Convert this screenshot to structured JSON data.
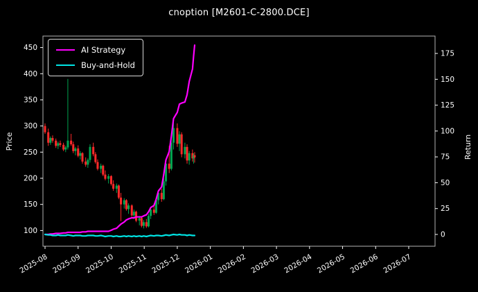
{
  "chart_data": {
    "type": "candlestick+line",
    "title": "cnoption [M2601-C-2800.DCE]",
    "ylabel_left": "Price",
    "ylabel_right": "Return",
    "legend_position": "upper left",
    "grid": false,
    "x_ticks": [
      "2025-08",
      "2025-09",
      "2025-10",
      "2025-11",
      "2025-12",
      "2026-01",
      "2026-02",
      "2026-03",
      "2026-04",
      "2026-05",
      "2026-06",
      "2026-07"
    ],
    "price_ticks": [
      100,
      150,
      200,
      250,
      300,
      350,
      400,
      450
    ],
    "return_ticks": [
      0,
      25,
      50,
      75,
      100,
      125,
      150,
      175
    ],
    "price_axis_range": [
      70,
      472
    ],
    "return_axis_range": [
      -11.4,
      191.8
    ],
    "colors": {
      "background": "#000000",
      "text": "#ffffff",
      "frame": "#b3b3b3",
      "up": "#00a651",
      "down": "#ff2a2a",
      "ai_line": "#ff00ff",
      "bh_line": "#00e5e5"
    },
    "candles": [
      [
        "2025-08-01",
        300,
        305,
        285,
        288
      ],
      [
        "2025-08-04",
        288,
        295,
        262,
        268
      ],
      [
        "2025-08-06",
        268,
        280,
        264,
        277
      ],
      [
        "2025-08-08",
        277,
        282,
        268,
        272
      ],
      [
        "2025-08-11",
        272,
        276,
        258,
        262
      ],
      [
        "2025-08-13",
        262,
        270,
        256,
        267
      ],
      [
        "2025-08-15",
        267,
        272,
        260,
        264
      ],
      [
        "2025-08-18",
        264,
        268,
        252,
        255
      ],
      [
        "2025-08-20",
        255,
        262,
        250,
        259
      ],
      [
        "2025-08-22",
        259,
        390,
        255,
        272
      ],
      [
        "2025-08-25",
        272,
        285,
        262,
        265
      ],
      [
        "2025-08-27",
        265,
        270,
        248,
        252
      ],
      [
        "2025-08-29",
        252,
        260,
        244,
        257
      ],
      [
        "2025-09-01",
        257,
        263,
        240,
        243
      ],
      [
        "2025-09-03",
        243,
        252,
        236,
        248
      ],
      [
        "2025-09-05",
        248,
        250,
        228,
        232
      ],
      [
        "2025-09-08",
        232,
        240,
        222,
        226
      ],
      [
        "2025-09-10",
        226,
        238,
        220,
        235
      ],
      [
        "2025-09-12",
        235,
        265,
        230,
        260
      ],
      [
        "2025-09-15",
        260,
        268,
        242,
        246
      ],
      [
        "2025-09-17",
        246,
        250,
        228,
        231
      ],
      [
        "2025-09-19",
        231,
        236,
        215,
        218
      ],
      [
        "2025-09-22",
        218,
        228,
        210,
        224
      ],
      [
        "2025-09-24",
        224,
        226,
        204,
        207
      ],
      [
        "2025-09-26",
        207,
        215,
        196,
        199
      ],
      [
        "2025-09-29",
        199,
        208,
        190,
        204
      ],
      [
        "2025-10-01",
        204,
        206,
        186,
        189
      ],
      [
        "2025-10-03",
        189,
        196,
        176,
        180
      ],
      [
        "2025-10-06",
        180,
        190,
        172,
        186
      ],
      [
        "2025-10-08",
        186,
        188,
        160,
        163
      ],
      [
        "2025-10-10",
        163,
        172,
        118,
        150
      ],
      [
        "2025-10-13",
        150,
        162,
        142,
        158
      ],
      [
        "2025-10-15",
        158,
        160,
        138,
        141
      ],
      [
        "2025-10-17",
        141,
        152,
        132,
        148
      ],
      [
        "2025-10-20",
        148,
        150,
        126,
        129
      ],
      [
        "2025-10-22",
        129,
        140,
        122,
        136
      ],
      [
        "2025-10-24",
        136,
        138,
        116,
        119
      ],
      [
        "2025-10-27",
        119,
        128,
        110,
        124
      ],
      [
        "2025-10-29",
        124,
        126,
        106,
        109
      ],
      [
        "2025-10-31",
        109,
        120,
        104,
        116
      ],
      [
        "2025-11-03",
        116,
        122,
        105,
        108
      ],
      [
        "2025-11-05",
        108,
        132,
        106,
        128
      ],
      [
        "2025-11-07",
        128,
        145,
        122,
        140
      ],
      [
        "2025-11-10",
        140,
        152,
        130,
        134
      ],
      [
        "2025-11-12",
        134,
        162,
        132,
        158
      ],
      [
        "2025-11-14",
        158,
        178,
        150,
        172
      ],
      [
        "2025-11-17",
        172,
        180,
        155,
        160
      ],
      [
        "2025-11-19",
        160,
        200,
        158,
        194
      ],
      [
        "2025-11-21",
        194,
        235,
        186,
        228
      ],
      [
        "2025-11-24",
        228,
        262,
        210,
        218
      ],
      [
        "2025-11-26",
        218,
        275,
        215,
        268
      ],
      [
        "2025-11-28",
        268,
        310,
        255,
        296
      ],
      [
        "2025-12-01",
        296,
        305,
        260,
        266
      ],
      [
        "2025-12-03",
        266,
        290,
        252,
        284
      ],
      [
        "2025-12-05",
        284,
        288,
        240,
        246
      ],
      [
        "2025-12-08",
        246,
        268,
        238,
        260
      ],
      [
        "2025-12-10",
        260,
        265,
        228,
        234
      ],
      [
        "2025-12-12",
        234,
        252,
        226,
        248
      ],
      [
        "2025-12-15",
        248,
        255,
        232,
        238
      ],
      [
        "2025-12-16",
        238,
        248,
        228,
        244
      ],
      [
        "2025-12-17",
        244,
        250,
        230,
        240
      ]
    ],
    "series": [
      {
        "name": "AI Strategy",
        "axis": "return",
        "color": "#ff00ff",
        "values": [
          0,
          0,
          0.5,
          0.5,
          1,
          1,
          1,
          1.5,
          1.5,
          2,
          2,
          2,
          2,
          2,
          2,
          2.5,
          2.5,
          3,
          3,
          3,
          3,
          3,
          3,
          3,
          3,
          3,
          4,
          5,
          6,
          8,
          10,
          12,
          14,
          15,
          16,
          16,
          17,
          17,
          17,
          18,
          19,
          22,
          26,
          28,
          34,
          42,
          46,
          58,
          72,
          80,
          95,
          112,
          118,
          126,
          127,
          128,
          135,
          148,
          160,
          172,
          183
        ]
      },
      {
        "name": "Buy-and-Hold",
        "axis": "return",
        "color": "#00e5e5",
        "values": [
          0,
          -0.5,
          -0.5,
          -1,
          -1,
          -0.5,
          -1,
          -1,
          -1,
          -0.5,
          -1,
          -1.5,
          -1,
          -1,
          -1,
          -1.5,
          -1.5,
          -1,
          -1,
          -1,
          -1.5,
          -1.5,
          -1,
          -1.5,
          -2,
          -1.5,
          -1.5,
          -2,
          -1.5,
          -2,
          -2,
          -1.5,
          -2,
          -1.5,
          -2,
          -1.5,
          -2,
          -1.5,
          -2,
          -1.5,
          -2,
          -1.5,
          -1,
          -1.5,
          -1,
          -1,
          -1.5,
          -1,
          -0.5,
          -1,
          -0.5,
          0,
          -0.5,
          0,
          -0.5,
          -0.5,
          -1,
          -0.5,
          -1,
          -1,
          -1
        ]
      }
    ]
  }
}
